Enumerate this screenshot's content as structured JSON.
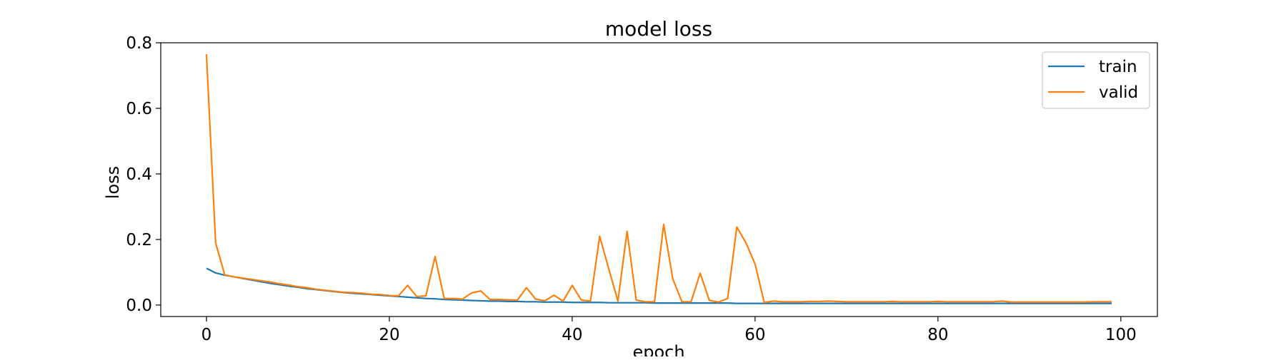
{
  "chart_data": {
    "type": "line",
    "title": "model loss",
    "xlabel": "epoch",
    "ylabel": "loss",
    "xlim": [
      -5,
      104
    ],
    "ylim": [
      -0.035,
      0.8
    ],
    "x_ticks": [
      0,
      20,
      40,
      60,
      80,
      100
    ],
    "y_ticks": [
      0.0,
      0.2,
      0.4,
      0.6,
      0.8
    ],
    "x_tick_labels": [
      "0",
      "20",
      "40",
      "60",
      "80",
      "100"
    ],
    "y_tick_labels": [
      "0.0",
      "0.2",
      "0.4",
      "0.6",
      "0.8"
    ],
    "grid": false,
    "legend_position": "top-right",
    "x": [
      0,
      1,
      2,
      3,
      4,
      5,
      6,
      7,
      8,
      9,
      10,
      11,
      12,
      13,
      14,
      15,
      16,
      17,
      18,
      19,
      20,
      21,
      22,
      23,
      24,
      25,
      26,
      27,
      28,
      29,
      30,
      31,
      32,
      33,
      34,
      35,
      36,
      37,
      38,
      39,
      40,
      41,
      42,
      43,
      44,
      45,
      46,
      47,
      48,
      49,
      50,
      51,
      52,
      53,
      54,
      55,
      56,
      57,
      58,
      59,
      60,
      61,
      62,
      63,
      64,
      65,
      66,
      67,
      68,
      69,
      70,
      71,
      72,
      73,
      74,
      75,
      76,
      77,
      78,
      79,
      80,
      81,
      82,
      83,
      84,
      85,
      86,
      87,
      88,
      89,
      90,
      91,
      92,
      93,
      94,
      95,
      96,
      97,
      98,
      99
    ],
    "series": [
      {
        "name": "train",
        "color": "#1f77b4",
        "values": [
          0.112,
          0.098,
          0.091,
          0.086,
          0.081,
          0.076,
          0.071,
          0.066,
          0.062,
          0.058,
          0.054,
          0.05,
          0.047,
          0.044,
          0.041,
          0.038,
          0.036,
          0.034,
          0.032,
          0.03,
          0.028,
          0.026,
          0.024,
          0.022,
          0.02,
          0.019,
          0.017,
          0.016,
          0.015,
          0.014,
          0.013,
          0.012,
          0.012,
          0.011,
          0.011,
          0.01,
          0.01,
          0.009,
          0.009,
          0.009,
          0.008,
          0.008,
          0.008,
          0.008,
          0.007,
          0.007,
          0.007,
          0.007,
          0.007,
          0.006,
          0.006,
          0.006,
          0.006,
          0.006,
          0.006,
          0.006,
          0.006,
          0.006,
          0.005,
          0.005,
          0.005,
          0.005,
          0.005,
          0.005,
          0.005,
          0.005,
          0.005,
          0.005,
          0.005,
          0.005,
          0.005,
          0.005,
          0.005,
          0.005,
          0.005,
          0.005,
          0.005,
          0.005,
          0.005,
          0.005,
          0.005,
          0.005,
          0.005,
          0.005,
          0.005,
          0.005,
          0.005,
          0.005,
          0.005,
          0.005,
          0.005,
          0.005,
          0.005,
          0.005,
          0.005,
          0.005,
          0.005,
          0.005,
          0.005,
          0.005
        ]
      },
      {
        "name": "valid",
        "color": "#ff7f0e",
        "values": [
          0.765,
          0.19,
          0.092,
          0.086,
          0.082,
          0.078,
          0.074,
          0.07,
          0.065,
          0.061,
          0.056,
          0.053,
          0.048,
          0.045,
          0.042,
          0.039,
          0.038,
          0.036,
          0.033,
          0.032,
          0.029,
          0.028,
          0.06,
          0.026,
          0.028,
          0.148,
          0.02,
          0.02,
          0.018,
          0.037,
          0.043,
          0.017,
          0.017,
          0.016,
          0.015,
          0.053,
          0.018,
          0.013,
          0.03,
          0.012,
          0.06,
          0.015,
          0.012,
          0.21,
          0.11,
          0.012,
          0.225,
          0.015,
          0.01,
          0.01,
          0.246,
          0.08,
          0.01,
          0.01,
          0.097,
          0.014,
          0.009,
          0.02,
          0.238,
          0.19,
          0.125,
          0.008,
          0.012,
          0.01,
          0.01,
          0.01,
          0.011,
          0.011,
          0.012,
          0.011,
          0.01,
          0.01,
          0.01,
          0.01,
          0.01,
          0.011,
          0.01,
          0.01,
          0.01,
          0.01,
          0.011,
          0.01,
          0.01,
          0.01,
          0.01,
          0.01,
          0.01,
          0.012,
          0.009,
          0.009,
          0.009,
          0.009,
          0.009,
          0.009,
          0.009,
          0.009,
          0.009,
          0.01,
          0.01,
          0.01
        ]
      }
    ]
  }
}
